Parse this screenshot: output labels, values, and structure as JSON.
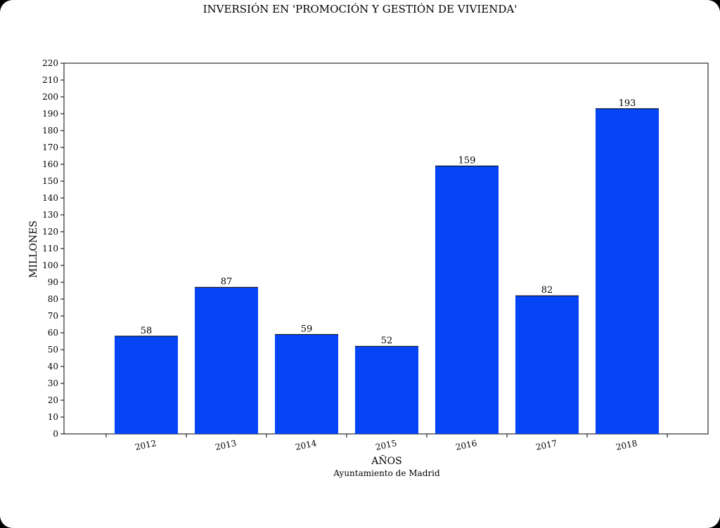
{
  "chart_data": {
    "type": "bar",
    "title": "INVERSIÓN EN 'PROMOCIÓN Y GESTIÓN DE VIVIENDA'",
    "xlabel": "AÑOS",
    "ylabel": "MILLONES",
    "source": "Ayuntamiento de Madrid",
    "categories": [
      "2012",
      "2013",
      "2014",
      "2015",
      "2016",
      "2017",
      "2018"
    ],
    "values": [
      58,
      87,
      59,
      52,
      159,
      82,
      193
    ],
    "data_labels": [
      "58",
      "87",
      "59",
      "52",
      "159",
      "82",
      "193"
    ],
    "ylim": [
      0,
      220
    ],
    "yticks": [
      0,
      10,
      20,
      30,
      40,
      50,
      60,
      70,
      80,
      90,
      100,
      110,
      120,
      130,
      140,
      150,
      160,
      170,
      180,
      190,
      200,
      210,
      220
    ],
    "grid": false,
    "bar_color": "#0645f5",
    "legend": "none"
  }
}
